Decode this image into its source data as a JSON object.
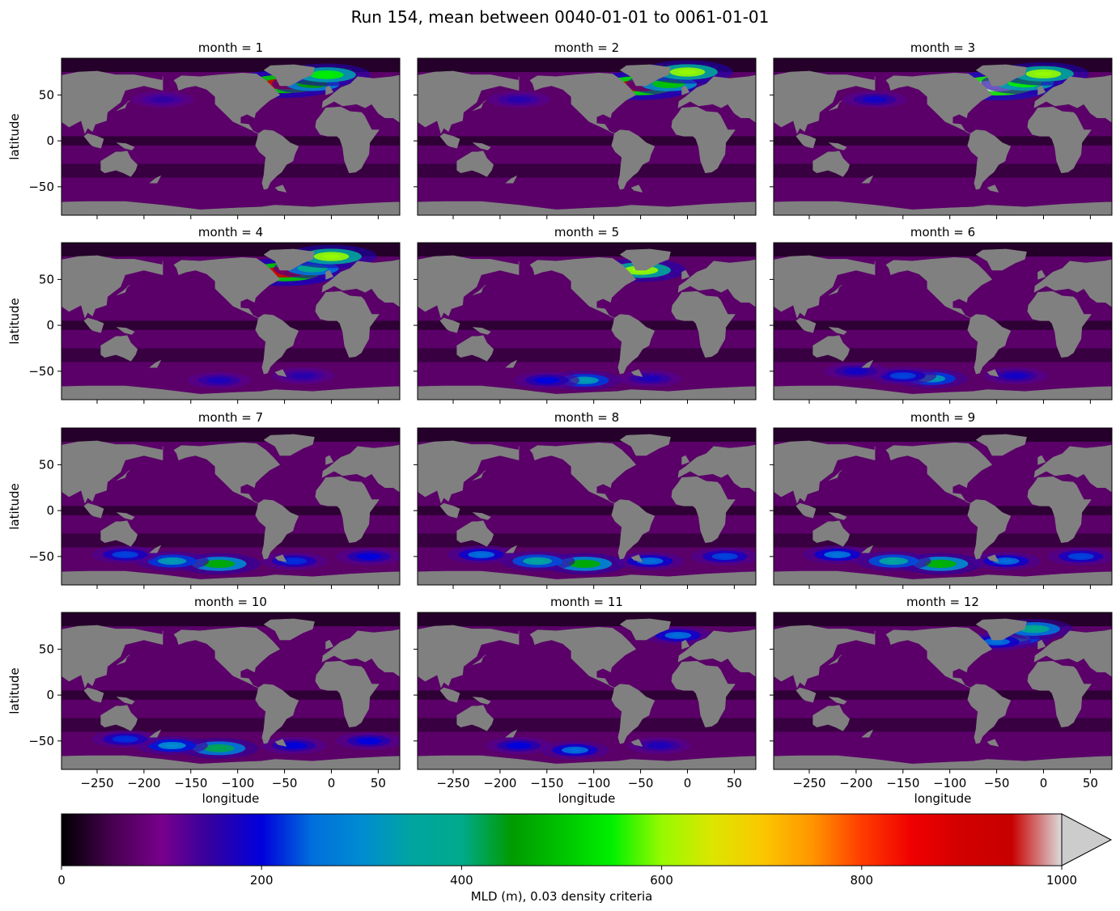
{
  "figure": {
    "title": "Run 154, mean between 0040-01-01 to 0061-01-01"
  },
  "chart_data": {
    "type": "heatmap",
    "title": "Run 154, mean between 0040-01-01 to 0061-01-01",
    "xlabel": "longitude",
    "ylabel": "latitude",
    "xlim": [
      -288,
      73
    ],
    "ylim": [
      -81,
      90
    ],
    "xticks": [
      -250,
      -200,
      -150,
      -100,
      -50,
      0,
      50
    ],
    "yticks": [
      50,
      0,
      -50
    ],
    "xtick_labels": [
      "−250",
      "−200",
      "−150",
      "−100",
      "−50",
      "0",
      "50"
    ],
    "ytick_labels": [
      "50",
      "0",
      "−50"
    ],
    "land_color": "#808080",
    "panels": [
      {
        "month": 1,
        "label": "month = 1",
        "hotspots": [
          [
            -50,
            62,
            900
          ],
          [
            -20,
            62,
            450
          ],
          [
            -5,
            72,
            550
          ],
          [
            170,
            40,
            200
          ],
          [
            -180,
            45,
            150
          ]
        ]
      },
      {
        "month": 2,
        "label": "month = 2",
        "hotspots": [
          [
            -52,
            60,
            950
          ],
          [
            -20,
            62,
            500
          ],
          [
            0,
            75,
            600
          ],
          [
            165,
            40,
            220
          ],
          [
            -180,
            45,
            160
          ]
        ]
      },
      {
        "month": 3,
        "label": "month = 3",
        "hotspots": [
          [
            -50,
            60,
            1000
          ],
          [
            -20,
            63,
            550
          ],
          [
            0,
            73,
            600
          ],
          [
            165,
            40,
            230
          ],
          [
            -180,
            45,
            180
          ]
        ]
      },
      {
        "month": 4,
        "label": "month = 4",
        "hotspots": [
          [
            -50,
            58,
            900
          ],
          [
            -20,
            62,
            400
          ],
          [
            0,
            75,
            600
          ],
          [
            -120,
            -60,
            170
          ],
          [
            -30,
            -55,
            160
          ]
        ]
      },
      {
        "month": 5,
        "label": "month = 5",
        "hotspots": [
          [
            -50,
            60,
            600
          ],
          [
            -110,
            -60,
            330
          ],
          [
            -150,
            -60,
            200
          ],
          [
            -40,
            -58,
            170
          ]
        ]
      },
      {
        "month": 6,
        "label": "month = 6",
        "hotspots": [
          [
            -120,
            -58,
            330
          ],
          [
            -150,
            -55,
            230
          ],
          [
            -200,
            -50,
            180
          ],
          [
            -30,
            -55,
            180
          ]
        ]
      },
      {
        "month": 7,
        "label": "month = 7",
        "hotspots": [
          [
            -120,
            -58,
            470
          ],
          [
            -170,
            -55,
            330
          ],
          [
            -220,
            -48,
            230
          ],
          [
            -40,
            -55,
            220
          ],
          [
            40,
            -50,
            200
          ]
        ]
      },
      {
        "month": 8,
        "label": "month = 8",
        "hotspots": [
          [
            -110,
            -58,
            470
          ],
          [
            -160,
            -55,
            350
          ],
          [
            -220,
            -48,
            250
          ],
          [
            -40,
            -55,
            250
          ],
          [
            40,
            -50,
            230
          ]
        ]
      },
      {
        "month": 9,
        "label": "month = 9",
        "hotspots": [
          [
            -110,
            -58,
            480
          ],
          [
            -160,
            -55,
            350
          ],
          [
            -220,
            -48,
            260
          ],
          [
            -40,
            -55,
            250
          ],
          [
            40,
            -50,
            230
          ]
        ]
      },
      {
        "month": 10,
        "label": "month = 10",
        "hotspots": [
          [
            -120,
            -58,
            420
          ],
          [
            -170,
            -55,
            300
          ],
          [
            -220,
            -48,
            220
          ],
          [
            -40,
            -55,
            200
          ],
          [
            40,
            -50,
            200
          ]
        ]
      },
      {
        "month": 11,
        "label": "month = 11",
        "hotspots": [
          [
            -120,
            -60,
            250
          ],
          [
            -180,
            -55,
            200
          ],
          [
            -30,
            -55,
            170
          ],
          [
            -10,
            65,
            250
          ]
        ]
      },
      {
        "month": 12,
        "label": "month = 12",
        "hotspots": [
          [
            -30,
            62,
            330
          ],
          [
            -10,
            72,
            400
          ],
          [
            -50,
            58,
            250
          ],
          [
            170,
            40,
            160
          ]
        ]
      }
    ],
    "colorbar": {
      "label": "MLD (m), 0.03 density criteria",
      "min": 0,
      "max": 1000,
      "extend": "max",
      "over_color": "#cccccc",
      "ticks": [
        0,
        200,
        400,
        600,
        800,
        1000
      ],
      "tick_labels": [
        "0",
        "200",
        "400",
        "600",
        "800",
        "1000"
      ],
      "colormap": "nipy_spectral"
    }
  }
}
